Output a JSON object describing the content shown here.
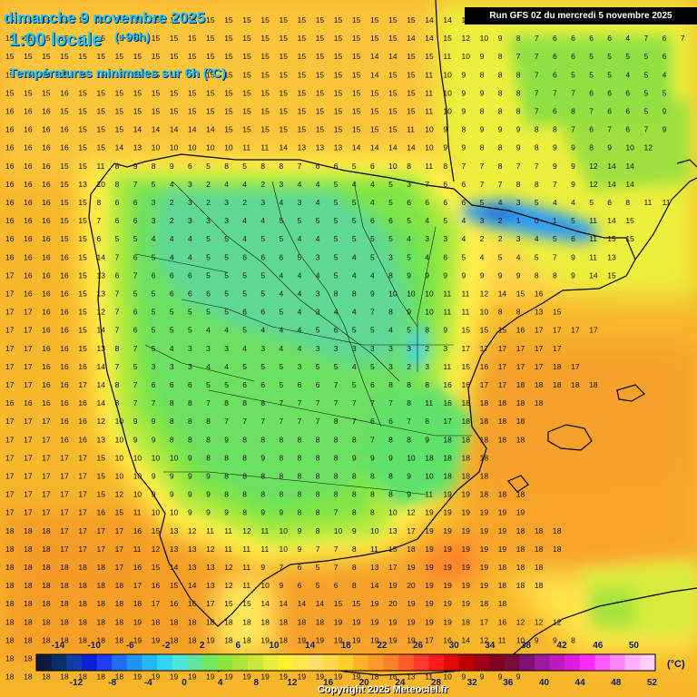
{
  "header": {
    "date": "dimanche 9 novembre 2025",
    "time": "1:00 locale",
    "lead": "(+96h)",
    "subtitle": "Températures minimales sur 6h (°C)",
    "run": "Run GFS 0Z du mercredi 5 novembre 2025"
  },
  "footer": {
    "copyright": "Copyright 2025 Meteociel.fr"
  },
  "scale": {
    "unit": "(°C)",
    "top_labels": [
      "-14",
      "-10",
      "-6",
      "-2",
      "2",
      "6",
      "10",
      "14",
      "18",
      "22",
      "26",
      "30",
      "34",
      "38",
      "42",
      "46",
      "50"
    ],
    "bottom_labels": [
      "-12",
      "-8",
      "-4",
      "0",
      "4",
      "8",
      "12",
      "16",
      "20",
      "24",
      "28",
      "32",
      "36",
      "40",
      "44",
      "48",
      "52"
    ],
    "colors": [
      "#0a1a3a",
      "#0b2d6b",
      "#0d3fa8",
      "#0a1fd8",
      "#1f3cf5",
      "#1e6ef0",
      "#1e95f0",
      "#25b8f5",
      "#2fd6f5",
      "#4ee6d8",
      "#5fe7a0",
      "#72e860",
      "#8ee83b",
      "#aee33a",
      "#c9e83a",
      "#e6ef3a",
      "#fff12a",
      "#ffe84b",
      "#ffdf6a",
      "#ffd94a",
      "#ffcf2a",
      "#ffb22a",
      "#ff9a2a",
      "#ff7f2a",
      "#ff5a2a",
      "#ff3a2a",
      "#ff1a1a",
      "#e10a0a",
      "#c00000",
      "#a0001a",
      "#820020",
      "#7a0a3a",
      "#80107a",
      "#9a1aa0",
      "#bf1ac0",
      "#e01ae0",
      "#ff2aff",
      "#ff5aff",
      "#ff88ff",
      "#ffb0ff",
      "#ffd0ff"
    ]
  },
  "values": {
    "grid_rows": [
      "15 15 15 15 15 15 15 15 15 15 15 15 15 15 15 15 15 15 15 15 15 15 15 14 14 15",
      "15 15 15 15 15 15 15 15 15 15 15 15 15 15 15 15 15 15 15 15 15 15 14 14 15 12 10 9 8 7 6 6 6 6 4 7 6 7 6",
      "15 15 15 15 15 15 15 15 15 15 15 15 15 15 15 15 15 15 15 15 14 14 15 15 11 10 9 8 7 7 6 6 5 5 5 5 6",
      "15 15 16 15 15 15 15 15 15 15 15 15 15 15 15 15 15 15 15 15 14 15 15 11 10 9 8 8 8 7 6 5 5 5 4 5 4",
      "15 15 15 16 15 15 15 15 15 15 15 15 15 15 15 15 15 15 15 15 15 15 15 11 10 9 9 8 8 7 7 7 6 6 6 5 5",
      "16 16 16 15 15 15 15 15 15 15 15 15 15 15 15 15 15 15 15 15 15 15 15 11 10 9 8 8 8 7 6 8 7 6 6 5 9",
      "16 16 16 16 15 15 15 14 14 14 14 14 15 15 15 15 15 15 15 15 15 15 11 10 9 8 9 9 9 8 8 7 6 7 6 7 9",
      "16 16 16 16 15 15 14 13 10 10 10 10 10 11 11 14 13 13 13 14 14 14 14 10 9 9 8 8 9 8 9 9 8 9 10 12",
      "16 16 16 15 15 11 8 9 8 9 6 5 8 5 8 8 7 6 6 5 6 10 8 11 8 7 7 8 7 7 9 9 12 14 14",
      "16 16 16 15 13 10 8 7 5 4 3 2 4 4 2 3 4 4 5 4 4 5 3 7 6 6 7 7 8 8 7 9 12 14 14",
      "16 16 16 15 15 8 6 6 3 2 3 2 3 2 3 4 3 4 5 5 4 5 6 6 6 6 5 4 3 5 4 4 5 6 8 11 11",
      "16 16 16 15 15 7 6 6 3 2 3 3 3 4 4 5 5 5 5 5 6 6 5 4 5 4 3 2 1 0 1 5 11 14 15",
      "16 16 16 15 15 6 5 5 4 4 4 5 5 4 5 5 4 4 5 5 5 5 4 3 3 4 2 2 3 4 5 6 11 15 15",
      "16 16 16 16 15 14 7 6 5 4 4 5 5 6 6 6 5 3 5 4 5 3 5 4 6 5 4 5 4 5 7 9 11 13",
      "17 16 16 16 15 13 6 7 6 6 6 5 5 5 5 4 4 4 5 4 4 8 9 9 9 9 9 9 9 8 8 9 14 15",
      "17 16 16 16 15 13 7 5 5 6 6 6 5 5 5 4 4 3 8 8 9 10 10 10 11 11 12 14 15 16",
      "17 17 16 16 15 12 7 6 5 5 5 5 5 6 6 5 4 3 4 4 7 8 9 10 11 11 10 8 8 13 15",
      "17 17 16 16 15 14 7 6 5 5 5 4 4 5 4 4 4 5 6 5 5 4 5 8 9 15 15 15 16 17 17 17 17",
      "17 17 16 16 15 13 8 7 5 4 3 3 3 4 3 4 4 3 3 3 3 3 3 2 3 17 17 17 17 17 17",
      "17 17 16 16 16 14 7 5 3 3 3 4 4 5 5 5 3 5 5 4 5 3 2 3 11 15 16 17 17 17 18 17",
      "17 17 16 16 17 14 8 7 6 6 6 5 5 6 6 5 6 6 7 5 6 8 8 8 16 16 17 17 18 18 18 18 18",
      "16 16 16 16 16 14 8 7 7 8 8 7 8 8 8 7 7 7 7 7 7 7 8 11 16 18 18 18 18 18",
      "17 17 17 16 16 12 10 9 9 8 8 8 7 7 7 7 7 7 8 7 6 6 7 8 17 18 18 18 18",
      "17 17 17 16 16 13 10 9 9 8 8 8 9 8 8 8 8 8 8 8 7 8 8 9 18 18 18 18 18",
      "17 17 17 17 17 15 10 10 10 10 9 8 8 8 9 8 8 8 8 9 9 9 10 18 18 18 18",
      "17 17 17 17 17 15 10 10 9 9 9 9 8 8 8 8 8 8 8 8 8 8 9 10 18 18 18",
      "17 17 17 17 17 15 12 10 9 9 9 9 8 8 8 8 8 8 8 8 8 8 9 11 19 19 18 18 18",
      "17 17 17 17 17 16 15 11 10 10 9 9 9 8 9 9 8 8 7 8 8 10 12 19 19 19 19 19 19",
      "18 18 18 17 17 17 17 16 15 13 12 11 11 12 11 10 9 8 10 9 10 13 17 19 19 19 19 19 18 18 18",
      "18 18 18 17 17 17 17 11 12 13 13 12 11 11 11 10 9 7 7 8 11 15 18 19 19 19 19 19 18 18 18",
      "18 18 18 18 18 18 17 16 15 14 13 13 12 11 9 7 6 5 7 8 13 17 19 19 19 19 19 18 18 18",
      "18 18 18 18 18 18 18 17 16 15 14 13 12 11 10 9 6 5 6 8 14 19 20 19 19 19 19 18 18 18",
      "18 18 18 18 18 18 18 18 17 16 16 17 15 15 14 14 14 14 15 15 19 20 19 19 19 19 18 18",
      "18 18 18 18 18 18 18 19 18 18 18 18 18 18 18 18 18 18 19 19 19 19 19 19 19 18 17 16 12 12 12",
      "18 18 18 18 18 18 18 19 19 18 18 19 18 18 19 18 19 19 19 19 19 19 19 17 16 14 12 11 10 9 9 8",
      "18 18 18 18 18 18 18 19 18 18 18 19 19 19 19 19 19 19 19 19 19 18 16 13 10 9 9 8 8 8 8",
      "18 18 18 18 18 18 18 19 19 19 19 19 19 19 19 19 19 19 19 19 18 16 13 11 10 9 9 9 9"
    ]
  }
}
